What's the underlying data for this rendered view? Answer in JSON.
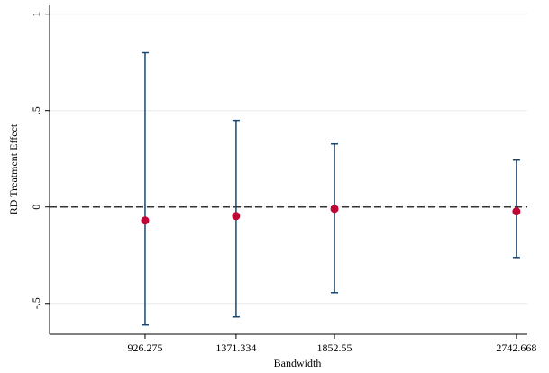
{
  "chart_data": {
    "type": "errorbar",
    "x_label": "Bandwidth",
    "y_label": "RD Treatment Effect",
    "x": [
      926.275,
      1371.334,
      1852.55,
      2742.668
    ],
    "values": [
      -0.07,
      -0.047,
      -0.01,
      -0.023
    ],
    "lower": [
      -0.612,
      -0.57,
      -0.444,
      -0.262
    ],
    "upper": [
      0.8,
      0.449,
      0.327,
      0.243
    ],
    "point_color": "#c10534",
    "bar_color": "#1a476f",
    "xlim": [
      459,
      2796
    ],
    "xticks": [
      926.275,
      1371.334,
      1852.55,
      2742.668
    ],
    "ylim": [
      -0.66,
      1.05
    ],
    "yticks": [
      {
        "value": -0.5,
        "label": "-.5"
      },
      0,
      {
        "value": 0.5,
        "label": ".5"
      },
      1
    ],
    "reference_line": 0,
    "grid": true
  }
}
